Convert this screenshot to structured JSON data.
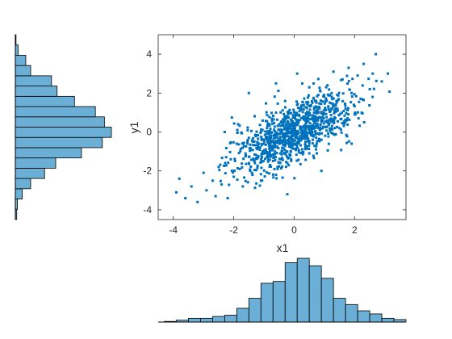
{
  "chart_data": [
    {
      "type": "scatter",
      "xlabel": "x1",
      "ylabel": "y1",
      "xlim": [
        -4.5,
        3.7
      ],
      "ylim": [
        -4.5,
        5
      ],
      "xticks": [
        -4,
        -2,
        0,
        2
      ],
      "yticks": [
        -4,
        -2,
        0,
        2,
        4
      ],
      "xtick_labels": [
        "-4",
        "-2",
        "0",
        "2"
      ],
      "ytick_labels": [
        "-4",
        "-2",
        "0",
        "2",
        "4"
      ],
      "grid": false,
      "marker_color": "#0072BD",
      "approx_points": 1000,
      "correlation": 0.7,
      "points": [
        [
          -3.9,
          -3.1
        ],
        [
          -3.8,
          -2.4
        ],
        [
          -3.6,
          -3.4
        ],
        [
          -3.4,
          -2.8
        ],
        [
          -3.2,
          -3.6
        ],
        [
          -3.0,
          -2.1
        ],
        [
          -2.9,
          -3.0
        ],
        [
          -2.7,
          -2.5
        ],
        [
          -2.6,
          -3.3
        ],
        [
          -2.5,
          -1.8
        ],
        [
          -2.4,
          -2.7
        ],
        [
          -2.2,
          -3.4
        ],
        [
          -2.1,
          -1.4
        ],
        [
          -2.0,
          -2.3
        ],
        [
          -1.9,
          -0.6
        ],
        [
          -1.8,
          -1.9
        ],
        [
          -1.7,
          -2.8
        ],
        [
          -1.6,
          -1.2
        ],
        [
          -1.5,
          -0.3
        ],
        [
          -1.4,
          -2.1
        ],
        [
          -1.3,
          -1.6
        ],
        [
          -1.2,
          -0.8
        ],
        [
          -1.1,
          -2.5
        ],
        [
          -1.0,
          -1.1
        ],
        [
          -0.9,
          0.2
        ],
        [
          -0.8,
          -1.7
        ],
        [
          -0.7,
          -0.5
        ],
        [
          -0.6,
          -2.2
        ],
        [
          -0.5,
          0.4
        ],
        [
          -0.4,
          -1.0
        ],
        [
          -0.3,
          -0.2
        ],
        [
          -0.2,
          0.9
        ],
        [
          -0.1,
          -1.4
        ],
        [
          0.0,
          0.1
        ],
        [
          0.1,
          -0.6
        ],
        [
          0.2,
          1.2
        ],
        [
          0.3,
          -0.3
        ],
        [
          0.4,
          0.7
        ],
        [
          0.5,
          -1.1
        ],
        [
          0.6,
          1.5
        ],
        [
          0.7,
          0.3
        ],
        [
          0.8,
          1.9
        ],
        [
          0.9,
          -0.4
        ],
        [
          1.0,
          1.1
        ],
        [
          1.1,
          2.4
        ],
        [
          1.2,
          0.6
        ],
        [
          1.3,
          3.1
        ],
        [
          1.4,
          1.6
        ],
        [
          1.5,
          0.2
        ],
        [
          1.6,
          2.7
        ],
        [
          1.7,
          1.2
        ],
        [
          1.8,
          3.3
        ],
        [
          1.9,
          2.0
        ],
        [
          2.0,
          0.9
        ],
        [
          2.1,
          2.9
        ],
        [
          2.2,
          1.7
        ],
        [
          2.3,
          3.5
        ],
        [
          2.5,
          2.2
        ],
        [
          2.6,
          3.0
        ],
        [
          2.7,
          4.0
        ],
        [
          2.9,
          2.6
        ],
        [
          3.1,
          3.0
        ],
        [
          -1.5,
          2.0
        ],
        [
          -0.6,
          2.5
        ],
        [
          0.9,
          -2.0
        ],
        [
          1.9,
          -0.6
        ],
        [
          -2.3,
          0.0
        ],
        [
          0.1,
          3.0
        ]
      ]
    },
    {
      "type": "bar",
      "orientation": "horizontal",
      "axis": "y1",
      "bin_edges": [
        -4.5,
        -4,
        -3.5,
        -3,
        -2.5,
        -2,
        -1.5,
        -1,
        -0.5,
        0,
        0.5,
        1,
        1.5,
        2,
        2.5,
        3,
        3.5,
        4,
        4.5
      ],
      "values": [
        2,
        3,
        10,
        22,
        42,
        58,
        95,
        125,
        138,
        128,
        115,
        85,
        60,
        52,
        22,
        15,
        4,
        1
      ],
      "bar_color": "#6BAED6",
      "edge_color": "#000000"
    },
    {
      "type": "bar",
      "orientation": "vertical",
      "axis": "x1",
      "bin_edges": [
        -4.3,
        -3.9,
        -3.5,
        -3.1,
        -2.7,
        -2.3,
        -1.9,
        -1.5,
        -1.1,
        -0.7,
        -0.3,
        0.1,
        0.5,
        0.9,
        1.3,
        1.7,
        2.1,
        2.5,
        2.9,
        3.3,
        3.7
      ],
      "values": [
        1,
        3,
        6,
        6,
        9,
        11,
        22,
        38,
        62,
        65,
        95,
        102,
        90,
        70,
        38,
        28,
        18,
        13,
        6,
        4
      ],
      "bar_color": "#6BAED6",
      "edge_color": "#000000"
    }
  ]
}
